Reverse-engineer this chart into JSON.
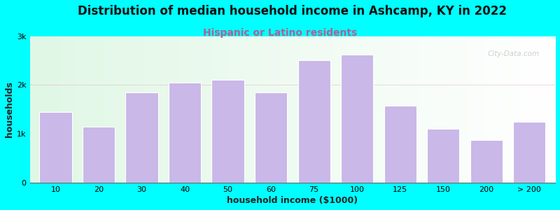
{
  "title": "Distribution of median household income in Ashcamp, KY in 2022",
  "subtitle": "Hispanic or Latino residents",
  "xlabel": "household income ($1000)",
  "ylabel": "households",
  "background_color": "#00FFFF",
  "bar_color": "#c9b8e8",
  "bar_edge_color": "#ffffff",
  "categories": [
    "10",
    "20",
    "30",
    "40",
    "50",
    "60",
    "75",
    "100",
    "125",
    "150",
    "200",
    "> 200"
  ],
  "values": [
    1450,
    1150,
    1850,
    2050,
    2100,
    1850,
    2500,
    2620,
    1580,
    1100,
    870,
    1250
  ],
  "ylim": [
    0,
    3000
  ],
  "yticks": [
    0,
    1000,
    2000,
    3000
  ],
  "ytick_labels": [
    "0",
    "1k",
    "2k",
    "3k"
  ],
  "watermark": "City-Data.com",
  "title_fontsize": 12,
  "subtitle_fontsize": 10,
  "subtitle_color": "#b06090",
  "axis_label_fontsize": 9,
  "tick_fontsize": 8
}
